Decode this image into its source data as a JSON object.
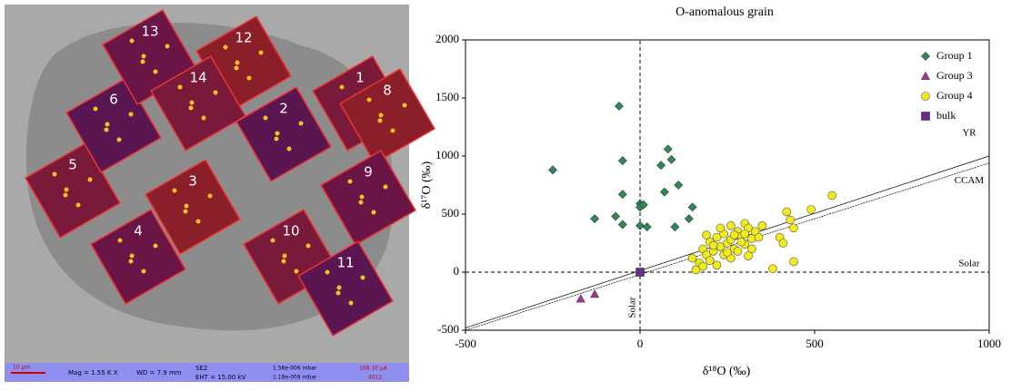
{
  "sem_image": {
    "labels": [
      "1",
      "2",
      "3",
      "4",
      "5",
      "6",
      "8",
      "9",
      "10",
      "11",
      "12",
      "13",
      "14"
    ],
    "info_bar": [
      "10 µm",
      "Mag =  1.55 K X",
      "WD =  7.9 mm",
      "SE2",
      "EHT = 15.00 kV",
      "1.58e-006 mbar",
      "1.18e-009 mbar",
      "168.10 µA",
      "4012"
    ]
  },
  "chart_data": {
    "type": "scatter",
    "title": "O-anomalous grain",
    "x_label": "δ¹⁸O  (‰)",
    "y_label": "δ¹⁷O (‰)",
    "xlim": [
      -500,
      1000
    ],
    "xticks": [
      -500,
      0,
      500,
      1000
    ],
    "ylim": [
      -500,
      2000
    ],
    "yticks": [
      -500,
      0,
      500,
      1000,
      1500,
      2000
    ],
    "legend": "top-right",
    "series": [
      {
        "name": "Group 1",
        "marker": "diamond",
        "color": "#2e8b57",
        "x": [
          -250,
          -60,
          -50,
          -50,
          -70,
          -130,
          -50,
          0,
          0,
          0,
          20,
          60,
          80,
          90,
          70,
          110,
          100,
          150,
          140,
          10
        ],
        "values": [
          880,
          1430,
          960,
          670,
          480,
          460,
          410,
          590,
          560,
          400,
          390,
          920,
          1060,
          970,
          690,
          750,
          390,
          560,
          460,
          580
        ]
      },
      {
        "name": "Group 3",
        "marker": "triangle",
        "color": "#b0309a",
        "x": [
          -170,
          -130
        ],
        "values": [
          -230,
          -190
        ]
      },
      {
        "name": "Group 4",
        "marker": "circle",
        "color": "#f2ec1a",
        "x": [
          150,
          170,
          180,
          190,
          200,
          210,
          220,
          230,
          240,
          250,
          260,
          270,
          280,
          290,
          300,
          310,
          320,
          330,
          340,
          200,
          220,
          240,
          260,
          280,
          300,
          320,
          180,
          210,
          250,
          270,
          290,
          310,
          230,
          260,
          300,
          400,
          420,
          430,
          440,
          410,
          490,
          550,
          440,
          380,
          160,
          190,
          350
        ],
        "values": [
          120,
          80,
          200,
          150,
          260,
          180,
          300,
          220,
          330,
          250,
          280,
          200,
          350,
          310,
          420,
          380,
          290,
          350,
          300,
          100,
          60,
          150,
          120,
          180,
          240,
          200,
          50,
          230,
          170,
          320,
          260,
          140,
          380,
          400,
          330,
          300,
          520,
          450,
          380,
          250,
          540,
          660,
          90,
          30,
          20,
          320,
          400
        ]
      },
      {
        "name": "bulk",
        "marker": "square",
        "color": "#6a2c8f",
        "x": [
          0
        ],
        "values": [
          0
        ]
      }
    ],
    "reference_lines": [
      {
        "name": "YR",
        "x": [
          -500,
          1000
        ],
        "y": [
          -480,
          1000
        ]
      },
      {
        "name": "CCAM",
        "x": [
          -500,
          1000
        ],
        "y": [
          -500,
          940
        ]
      },
      {
        "name": "Solar",
        "x": [
          -500,
          1000
        ],
        "y": [
          0,
          0
        ]
      },
      {
        "name": "Solar",
        "x": [
          0,
          0
        ],
        "y": [
          -500,
          2000
        ]
      }
    ]
  }
}
